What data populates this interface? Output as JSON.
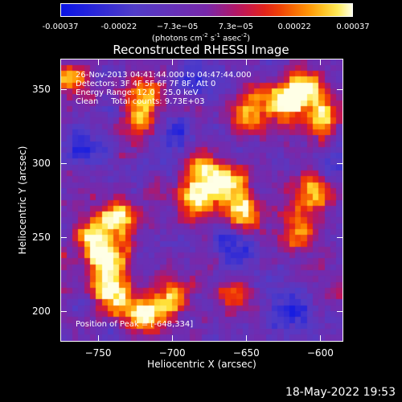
{
  "colorbar": {
    "ticks": [
      "-0.00037",
      "-0.00022",
      "−7.3e−05",
      "7.3e−05",
      "0.00022",
      "0.00037"
    ],
    "units_prefix": "(photons cm",
    "units_sup1": "-2",
    "units_mid": " s",
    "units_sup2": "-1",
    "units_mid2": " asec",
    "units_sup3": "-2",
    "units_suffix": ")"
  },
  "title": "Reconstructed RHESSI Image",
  "info": {
    "line1": "26-Nov-2013 04:41:44.000 to 04:47:44.000",
    "line2": "Detectors: 3F 4F 5F 6F 7F 8F, Att 0",
    "line3": "Energy Range: 12.0 - 25.0 keV",
    "line4": "Clean     Total counts: 9.73E+03",
    "position": "Position of Peak = [-648,334]"
  },
  "axes": {
    "xlabel": "Heliocentric X (arcsec)",
    "ylabel": "Heliocentric Y (arcsec)",
    "xticks": [
      "−750",
      "−700",
      "−650",
      "−600"
    ],
    "yticks": [
      "350",
      "300",
      "250",
      "200"
    ]
  },
  "timestamp": "18-May-2022 19:53",
  "chart_data": {
    "type": "heatmap",
    "title": "Reconstructed RHESSI Image",
    "xlabel": "Heliocentric X (arcsec)",
    "ylabel": "Heliocentric Y (arcsec)",
    "xlim": [
      -775,
      -585
    ],
    "ylim": [
      180,
      370
    ],
    "colormap": "hot-diverging",
    "vmin": -0.00037,
    "vmax": 0.00037,
    "peak": [
      -648,
      334
    ],
    "bright_regions": [
      {
        "x": -740,
        "y": 212,
        "level": 1.0
      },
      {
        "x": -743,
        "y": 232,
        "level": 0.9
      },
      {
        "x": -718,
        "y": 198,
        "level": 0.95
      },
      {
        "x": -700,
        "y": 208,
        "level": 0.7
      },
      {
        "x": -735,
        "y": 262,
        "level": 0.85
      },
      {
        "x": -752,
        "y": 250,
        "level": 0.8
      },
      {
        "x": -684,
        "y": 275,
        "level": 0.9
      },
      {
        "x": -665,
        "y": 285,
        "level": 0.85
      },
      {
        "x": -650,
        "y": 268,
        "level": 0.8
      },
      {
        "x": -678,
        "y": 295,
        "level": 0.6
      },
      {
        "x": -610,
        "y": 350,
        "level": 0.95
      },
      {
        "x": -625,
        "y": 340,
        "level": 0.95
      },
      {
        "x": -600,
        "y": 330,
        "level": 0.8
      },
      {
        "x": -720,
        "y": 345,
        "level": 0.75
      },
      {
        "x": -720,
        "y": 325,
        "level": 0.55
      },
      {
        "x": -770,
        "y": 355,
        "level": 0.6
      },
      {
        "x": -648,
        "y": 334,
        "level": 0.7
      },
      {
        "x": -605,
        "y": 280,
        "level": 0.75
      },
      {
        "x": -615,
        "y": 255,
        "level": 0.65
      },
      {
        "x": -660,
        "y": 210,
        "level": 0.5
      }
    ],
    "dark_regions": [
      {
        "x": -755,
        "y": 310
      },
      {
        "x": -655,
        "y": 240
      },
      {
        "x": -620,
        "y": 200
      },
      {
        "x": -700,
        "y": 320
      },
      {
        "x": -680,
        "y": 360
      }
    ]
  }
}
